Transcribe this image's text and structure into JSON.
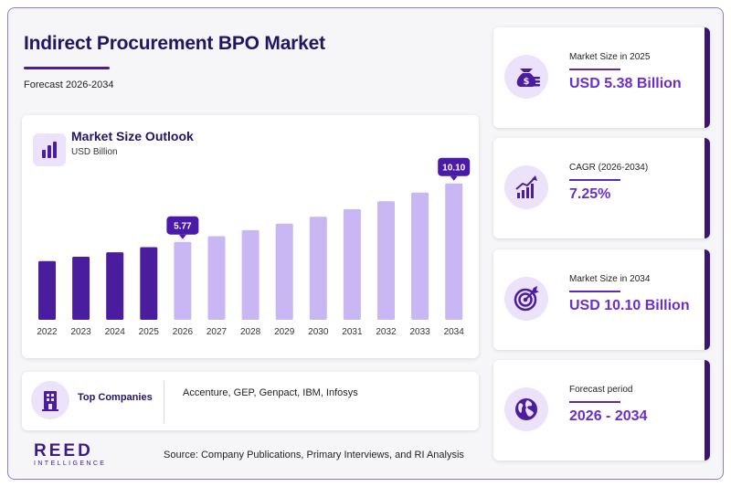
{
  "header": {
    "title": "Indirect Procurement BPO Market",
    "subtitle": "Forecast 2026-2034"
  },
  "chart_card": {
    "title": "Market Size Outlook",
    "unit": "USD Billion"
  },
  "chart_data": {
    "type": "bar",
    "categories": [
      "2022",
      "2023",
      "2024",
      "2025",
      "2026",
      "2027",
      "2028",
      "2029",
      "2030",
      "2031",
      "2032",
      "2033",
      "2034"
    ],
    "values": [
      4.35,
      4.67,
      5.0,
      5.38,
      5.77,
      6.19,
      6.64,
      7.12,
      7.63,
      8.19,
      8.78,
      9.42,
      10.1
    ],
    "historical_until": "2025",
    "data_labels": [
      {
        "category": "2026",
        "text": "5.77"
      },
      {
        "category": "2034",
        "text": "10.10"
      }
    ],
    "ylim": [
      0,
      11.5
    ],
    "grid": false,
    "colors": {
      "historical": "#4a1d9e",
      "forecast": "#c8b7f3",
      "label_bg": "#4b1aa8",
      "label_text": "#ffffff",
      "tick_text": "#333333"
    }
  },
  "companies": {
    "label": "Top Companies",
    "list": "Accenture, GEP, Genpact, IBM, Infosys"
  },
  "stats": [
    {
      "label": "Market Size in 2025",
      "value": "USD 5.38 Billion",
      "icon": "money-bag-icon"
    },
    {
      "label": "CAGR (2026-2034)",
      "value": "7.25%",
      "icon": "growth-chart-icon"
    },
    {
      "label": "Market Size in 2034",
      "value": "USD 10.10 Billion",
      "icon": "target-icon"
    },
    {
      "label": "Forecast period",
      "value": "2026 - 2034",
      "icon": "globe-icon"
    }
  ],
  "logo": {
    "brand": "REED",
    "tagline": "INTELLIGENCE"
  },
  "source": "Source: Company Publications, Primary Interviews, and RI Analysis",
  "theme": {
    "accent": "#6a2ed0",
    "dark": "#241466",
    "light": "#ece3fb"
  }
}
